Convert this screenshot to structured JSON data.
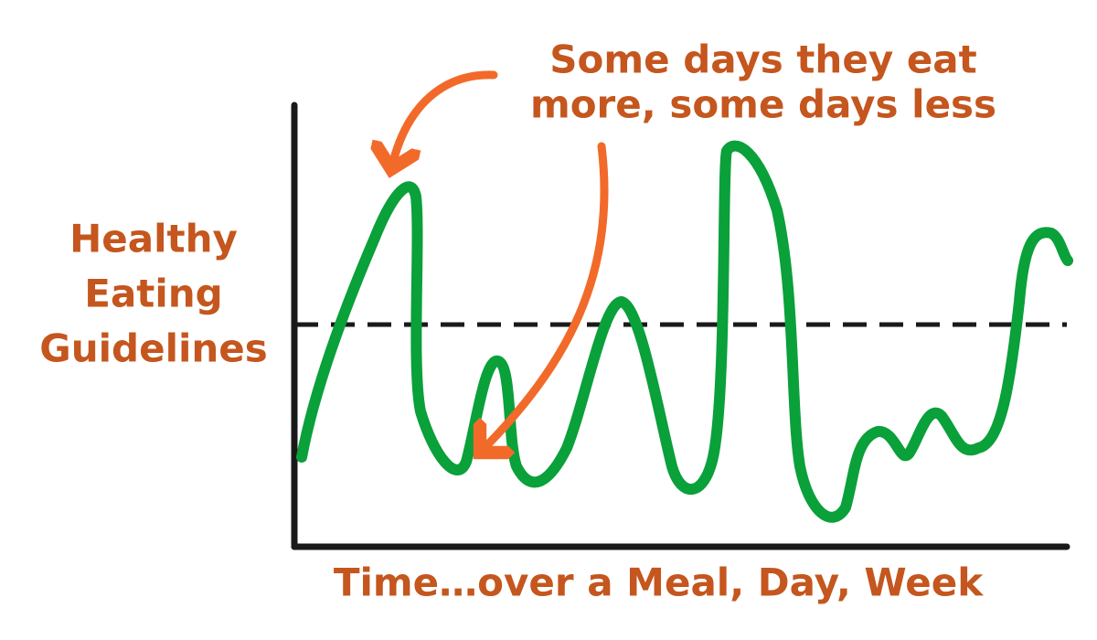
{
  "annotation": {
    "lines": [
      "Some days they eat",
      "more, some days less"
    ]
  },
  "y_label": {
    "lines": [
      "Healthy",
      "Eating",
      "Guidelines"
    ]
  },
  "x_label": "Time…over a Meal, Day, Week"
}
